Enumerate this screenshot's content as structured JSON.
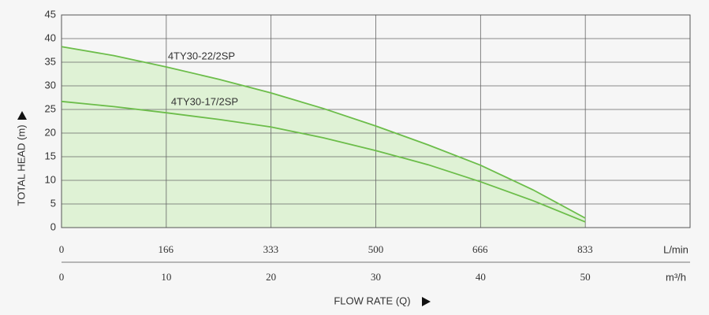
{
  "chart_data": {
    "type": "line",
    "x": [
      0,
      5,
      10,
      15,
      20,
      25,
      30,
      35,
      40,
      45,
      50
    ],
    "series": [
      {
        "name": "4TY30-22/2SP",
        "color": "#6cbd4a",
        "values": [
          38.3,
          36.4,
          34,
          31.4,
          28.5,
          25.2,
          21.5,
          17.5,
          13.2,
          8,
          2
        ]
      },
      {
        "name": "4TY30-17/2SP",
        "color": "#6cbd4a",
        "values": [
          26.7,
          25.6,
          24.3,
          22.9,
          21.3,
          19,
          16.3,
          13.3,
          9.7,
          5.7,
          1.2
        ]
      }
    ],
    "area_color": "#dff2d5",
    "ylim": [
      0,
      45
    ],
    "yticks": [
      0,
      5,
      10,
      15,
      20,
      25,
      30,
      35,
      40,
      45
    ],
    "xlim": [
      0,
      60
    ],
    "xticks": [
      0,
      10,
      20,
      30,
      40,
      50
    ],
    "x_unit": "m³/h",
    "x2lim": [
      0,
      1000
    ],
    "x2ticks": [
      0,
      166,
      333,
      500,
      666,
      833
    ],
    "x2_unit": "L/min",
    "y_label": "TOTAL HEAD (m)",
    "x_label": "FLOW RATE (Q)",
    "grid": true
  }
}
